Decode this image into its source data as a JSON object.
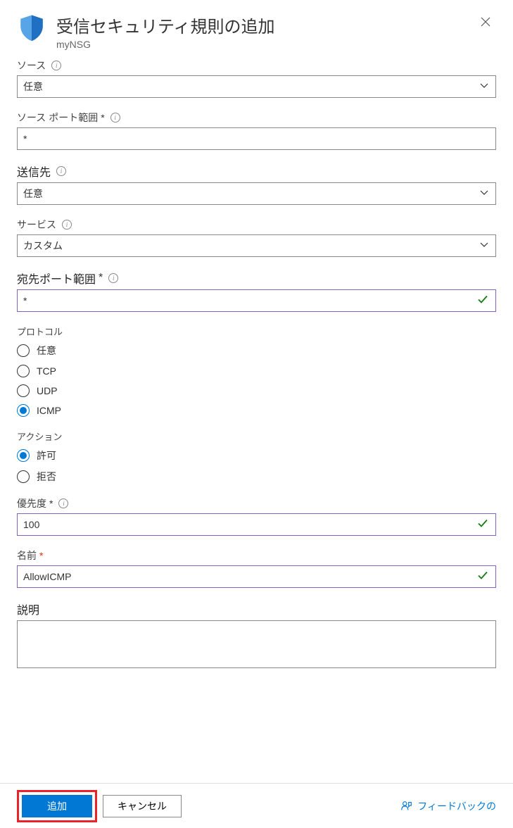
{
  "header": {
    "title": "受信セキュリティ規則の追加",
    "subtitle": "myNSG"
  },
  "fields": {
    "source": {
      "label": "ソース",
      "value": "任意"
    },
    "sourcePort": {
      "label": "ソース ポート範囲",
      "value": "*"
    },
    "destination": {
      "label": "送信先",
      "value": "任意"
    },
    "service": {
      "label": "サービス",
      "value": "カスタム"
    },
    "destPort": {
      "label": "宛先ポート範囲",
      "value": "*"
    },
    "protocol": {
      "label": "プロトコル",
      "options": [
        "任意",
        "TCP",
        "UDP",
        "ICMP"
      ],
      "selected": "ICMP"
    },
    "action": {
      "label": "アクション",
      "options": [
        "許可",
        "拒否"
      ],
      "selected": "許可"
    },
    "priority": {
      "label": "優先度",
      "value": "100"
    },
    "name": {
      "label": "名前",
      "value": "AllowICMP"
    },
    "description": {
      "label": "説明",
      "value": ""
    }
  },
  "footer": {
    "add": "追加",
    "cancel": "キャンセル",
    "feedback": "フィードバックの"
  },
  "colors": {
    "primary": "#0078d4",
    "validated_border": "#8661c5",
    "highlight_border": "#e8232a",
    "success": "#107c10"
  }
}
